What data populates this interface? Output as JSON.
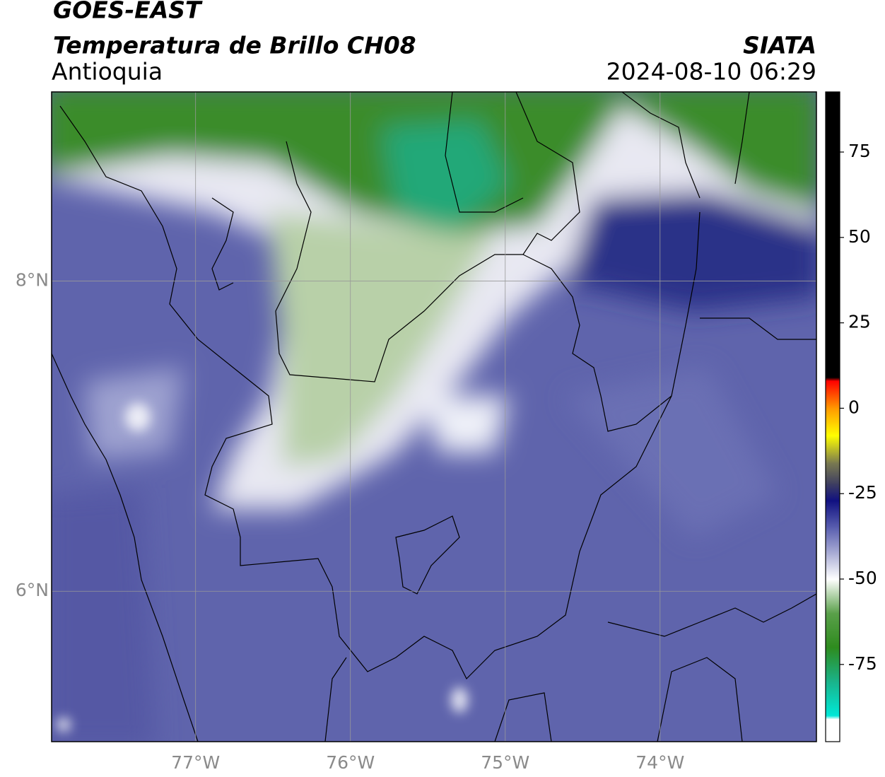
{
  "header": {
    "satellite": "GOES-EAST",
    "product": "Temperatura de Brillo CH08",
    "region": "Antioquia",
    "source": "SIATA",
    "datetime": "2024-08-10 06:29"
  },
  "map": {
    "xlim": [
      -77.93,
      -72.99
    ],
    "ylim": [
      5.03,
      9.22
    ],
    "xticks": [
      {
        "value": -77,
        "label": "77°W"
      },
      {
        "value": -76,
        "label": "76°W"
      },
      {
        "value": -75,
        "label": "75°W"
      },
      {
        "value": -74,
        "label": "74°W"
      }
    ],
    "yticks": [
      {
        "value": 6,
        "label": "6°N"
      },
      {
        "value": 8,
        "label": "8°N"
      }
    ]
  },
  "colorbar": {
    "lim": [
      -97.6,
      92.6
    ],
    "ticks": [
      75,
      50,
      25,
      0,
      -25,
      -50,
      -75
    ],
    "stops": [
      {
        "value": 92.6,
        "color": "#000000"
      },
      {
        "value": 9,
        "color": "#000000"
      },
      {
        "value": 8,
        "color": "#ff0000"
      },
      {
        "value": 0,
        "color": "#ff9900"
      },
      {
        "value": -8,
        "color": "#ffff00"
      },
      {
        "value": -16,
        "color": "#7a7a50"
      },
      {
        "value": -22,
        "color": "#404060"
      },
      {
        "value": -27,
        "color": "#101080"
      },
      {
        "value": -35,
        "color": "#5a5fb0"
      },
      {
        "value": -43,
        "color": "#b0b3d8"
      },
      {
        "value": -50,
        "color": "#ffffff"
      },
      {
        "value": -60,
        "color": "#5aa04a"
      },
      {
        "value": -70,
        "color": "#2e8b1e"
      },
      {
        "value": -80,
        "color": "#1ab38a"
      },
      {
        "value": -90,
        "color": "#00e8d8"
      },
      {
        "value": -91,
        "color": "#ffffff"
      },
      {
        "value": -97.6,
        "color": "#ffffff"
      }
    ]
  }
}
